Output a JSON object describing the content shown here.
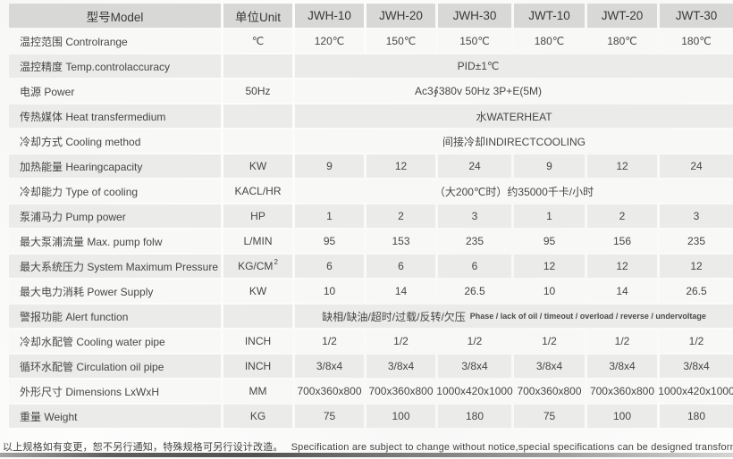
{
  "table": {
    "header": {
      "model": "型号Model",
      "unit": "单位Unit",
      "columns": [
        "JWH-10",
        "JWH-20",
        "JWH-30",
        "JWT-10",
        "JWT-20",
        "JWT-30"
      ]
    },
    "rows": [
      {
        "label": "温控范围 Controlrange",
        "unit": "℃",
        "values": [
          "120℃",
          "150℃",
          "150℃",
          "180℃",
          "180℃",
          "180℃"
        ]
      },
      {
        "label": "温控精度 Temp.controlaccuracy",
        "unit": "",
        "span": "PID±1℃"
      },
      {
        "label": "电源 Power",
        "unit": "50Hz",
        "span": "Ac3∮380v 50Hz 3P+E(5M)"
      },
      {
        "label": "传热媒体 Heat transfermedium",
        "unit": "",
        "span": "水WATERHEAT"
      },
      {
        "label": "冷却方式 Cooling method",
        "unit": "",
        "span": "间接冷却INDIRECTCOOLING"
      },
      {
        "label": "加热能量 Hearingcapacity",
        "unit": "KW",
        "values": [
          "9",
          "12",
          "24",
          "9",
          "12",
          "24"
        ]
      },
      {
        "label": "冷却能力 Type of cooling",
        "unit": "KACL/HR",
        "span": "（大200℃时）约35000千卡/小时"
      },
      {
        "label": "泵浦马力 Pump power",
        "unit": "HP",
        "values": [
          "1",
          "2",
          "3",
          "1",
          "2",
          "3"
        ]
      },
      {
        "label": "最大泵浦流量 Max. pump folw",
        "unit": "L/MIN",
        "values": [
          "95",
          "153",
          "235",
          "95",
          "156",
          "235"
        ]
      },
      {
        "label": "最大系统压力 System Maximum Pressure",
        "unit": "KG/CM",
        "unit_sup": "2",
        "values": [
          "6",
          "6",
          "6",
          "12",
          "12",
          "12"
        ]
      },
      {
        "label": "最大电力消耗 Power Supply",
        "unit": "KW",
        "values": [
          "10",
          "14",
          "26.5",
          "10",
          "14",
          "26.5"
        ]
      },
      {
        "label": "警报功能 Alert function",
        "unit": "",
        "span": "缺相/缺油/超时/过载/反转/欠压",
        "span_small": "Phase / lack of oil / timeout / overload / reverse / undervoltage"
      },
      {
        "label": "冷却水配管 Cooling water pipe",
        "unit": "INCH",
        "values": [
          "1/2",
          "1/2",
          "1/2",
          "1/2",
          "1/2",
          "1/2"
        ]
      },
      {
        "label": "循环水配管 Circulation oil pipe",
        "unit": "INCH",
        "values": [
          "3/8x4",
          "3/8x4",
          "3/8x4",
          "3/8x4",
          "3/8x4",
          "3/8x4"
        ]
      },
      {
        "label": "外形尺寸 Dimensions LxWxH",
        "unit": "MM",
        "values": [
          "700x360x800",
          "700x360x800",
          "1000x420x1000",
          "700x360x800",
          "700x360x800",
          "1000x420x1000"
        ]
      },
      {
        "label": "重量 Weight",
        "unit": "KG",
        "values": [
          "75",
          "100",
          "180",
          "75",
          "100",
          "180"
        ]
      }
    ]
  },
  "footer": {
    "note_cn": "以上规格如有变更，恕不另行通知，特殊规格可另行设计改造。",
    "note_en": "Specification are subject to change without notice,special specifications can be designed transformation."
  },
  "colors": {
    "header_bg": "#d8d8d7",
    "row_gray": "#ebebea",
    "row_light": "#f8f8f7",
    "text": "#464646"
  }
}
